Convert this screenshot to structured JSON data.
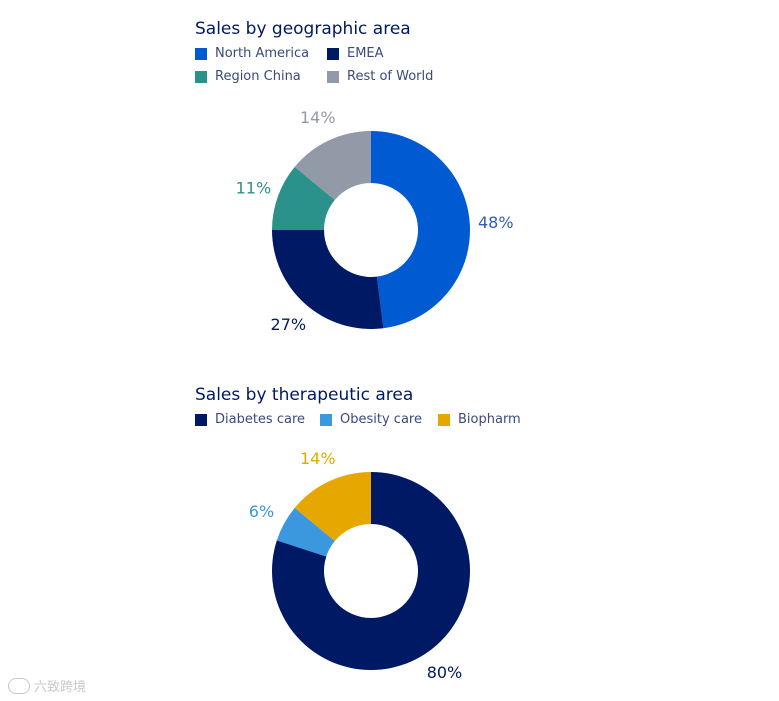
{
  "chart_data": [
    {
      "type": "pie",
      "title": "Sales by geographic area",
      "categories": [
        "North America",
        "EMEA",
        "Region China",
        "Rest of World"
      ],
      "values": [
        48,
        27,
        11,
        14
      ],
      "value_labels": [
        "48%",
        "27%",
        "11%",
        "14%"
      ],
      "colors": [
        "#005ad2",
        "#001965",
        "#2a918b",
        "#939aa7"
      ],
      "label_colors": [
        "#2c5fb8",
        "#001965",
        "#2a918b",
        "#939aa7"
      ],
      "legend": [
        "North America",
        "EMEA",
        "Region China",
        "Rest of World"
      ],
      "legend_placement": "top-left"
    },
    {
      "type": "pie",
      "title": "Sales by therapeutic area",
      "categories": [
        "Diabetes care",
        "Obesity care",
        "Biopharm"
      ],
      "values": [
        80,
        6,
        14
      ],
      "value_labels": [
        "80%",
        "6%",
        "14%"
      ],
      "colors": [
        "#001965",
        "#3b97de",
        "#e6a800"
      ],
      "label_colors": [
        "#001965",
        "#3b97de",
        "#e6a800"
      ],
      "legend": [
        "Diabetes care",
        "Obesity care",
        "Biopharm"
      ],
      "legend_placement": "top-left"
    }
  ],
  "watermark": {
    "text": "六致跨境"
  }
}
